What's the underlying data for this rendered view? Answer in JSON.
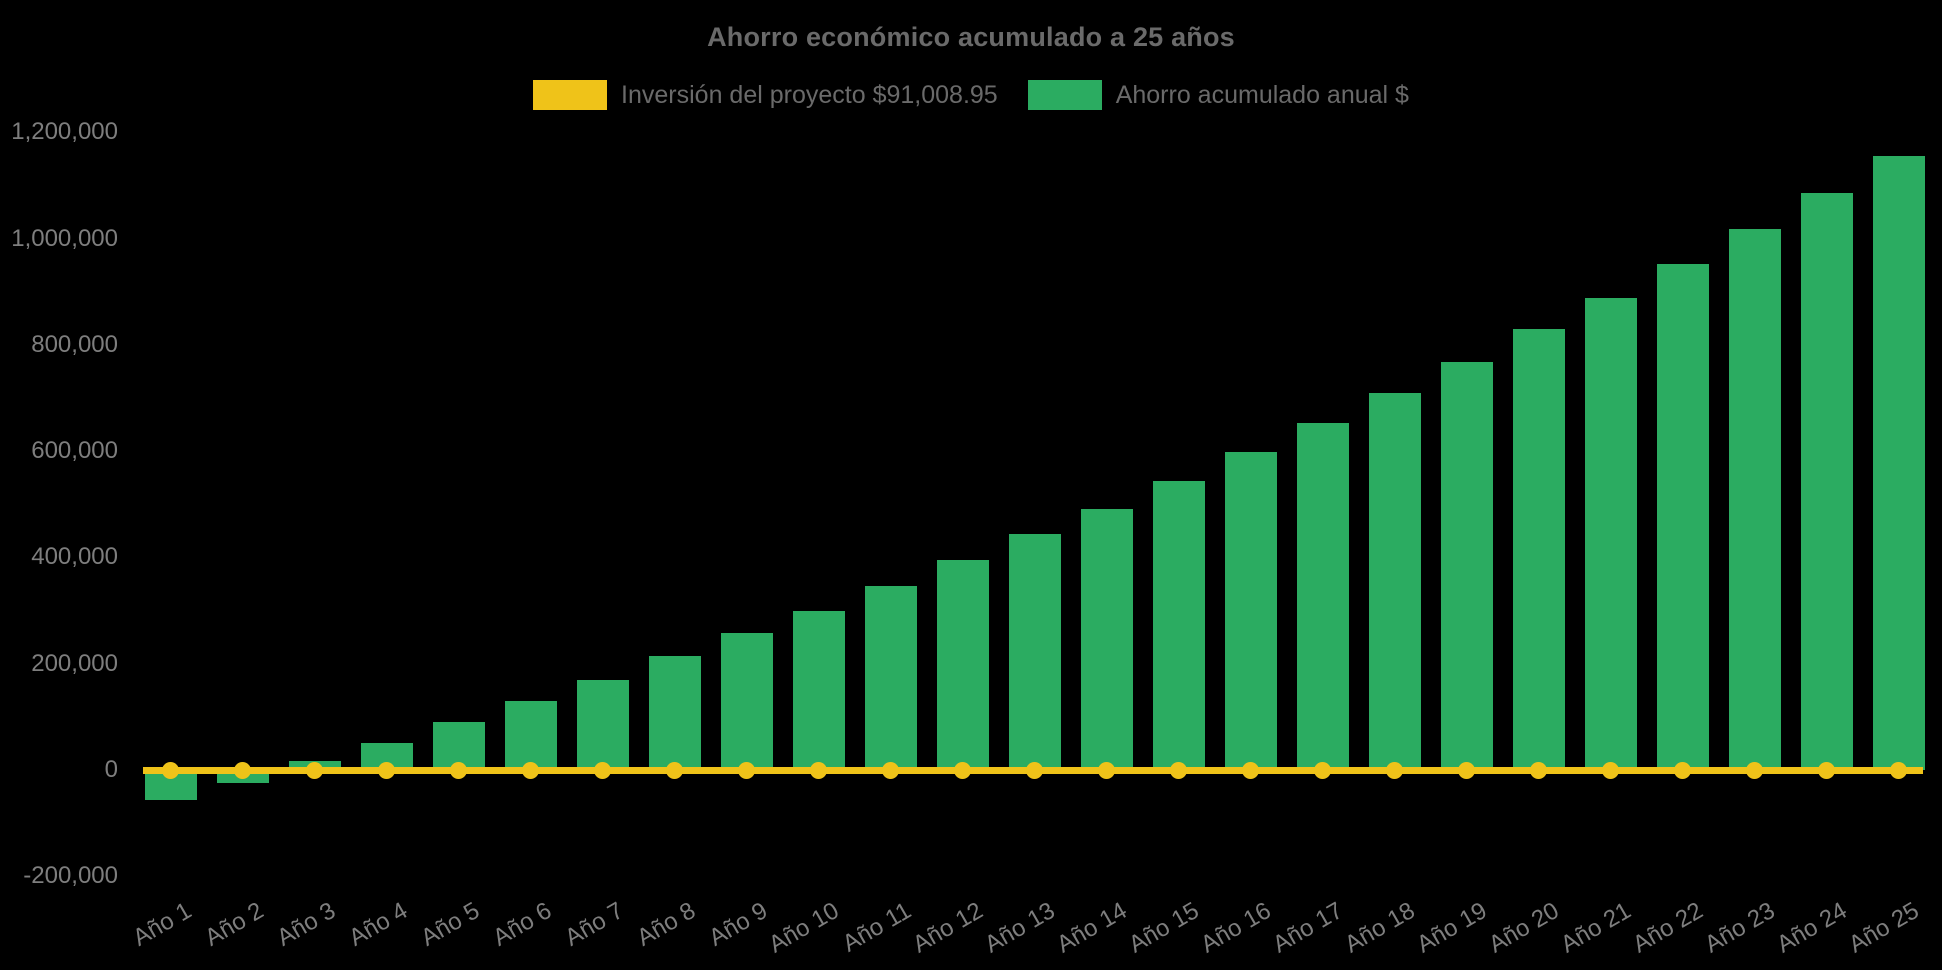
{
  "title": "Ahorro económico acumulado a 25 años",
  "colors": {
    "background": "#000000",
    "bar_green": "#2BAC61",
    "line_yellow": "#EFC319",
    "title_text": "#6A6A6A",
    "axis_text": "#7E7E7E"
  },
  "legend": {
    "items": [
      {
        "label": "Inversión del proyecto $91,008.95",
        "color": "#EFC319",
        "series_type": "line"
      },
      {
        "label": "Ahorro acumulado anual $",
        "color": "#2BAC61",
        "series_type": "bar"
      }
    ]
  },
  "y_axis": {
    "tick_values": [
      1200000,
      1000000,
      800000,
      600000,
      400000,
      200000,
      0,
      -200000
    ],
    "tick_labels": [
      "1,200,000",
      "1,000,000",
      "800,000",
      "600,000",
      "400,000",
      "200,000",
      "0",
      "-200,000"
    ]
  },
  "x_axis": {
    "rotation_deg": -30
  },
  "chart_data": {
    "type": "bar",
    "title": "Ahorro económico acumulado a 25 años",
    "categories": [
      "Año 1",
      "Año 2",
      "Año 3",
      "Año 4",
      "Año 5",
      "Año 6",
      "Año 7",
      "Año 8",
      "Año 9",
      "Año 10",
      "Año 11",
      "Año 12",
      "Año 13",
      "Año 14",
      "Año 15",
      "Año 16",
      "Año 17",
      "Año 18",
      "Año 19",
      "Año 20",
      "Año 21",
      "Año 22",
      "Año 23",
      "Año 24",
      "Año 25"
    ],
    "series": [
      {
        "name": "Ahorro acumulado anual $",
        "type": "bar",
        "color": "#2BAC61",
        "values": [
          -56000,
          -24000,
          16000,
          50000,
          90000,
          130000,
          170000,
          214000,
          258000,
          300000,
          346000,
          395000,
          444000,
          491000,
          544000,
          598000,
          653000,
          709000,
          767000,
          829000,
          888000,
          952000,
          1018000,
          1085000,
          1155000
        ]
      },
      {
        "name": "Inversión del proyecto $91,008.95",
        "type": "line",
        "color": "#EFC319",
        "investment_amount_label": "$91,008.95",
        "plotted_constant_value": 0,
        "markers_at_every_category": true
      }
    ],
    "ylabel": "",
    "xlabel": "",
    "ylim": [
      -200000,
      1200000
    ],
    "ytick_step": 200000,
    "grid": false,
    "legend_position": "top-center",
    "background": "#000000"
  }
}
